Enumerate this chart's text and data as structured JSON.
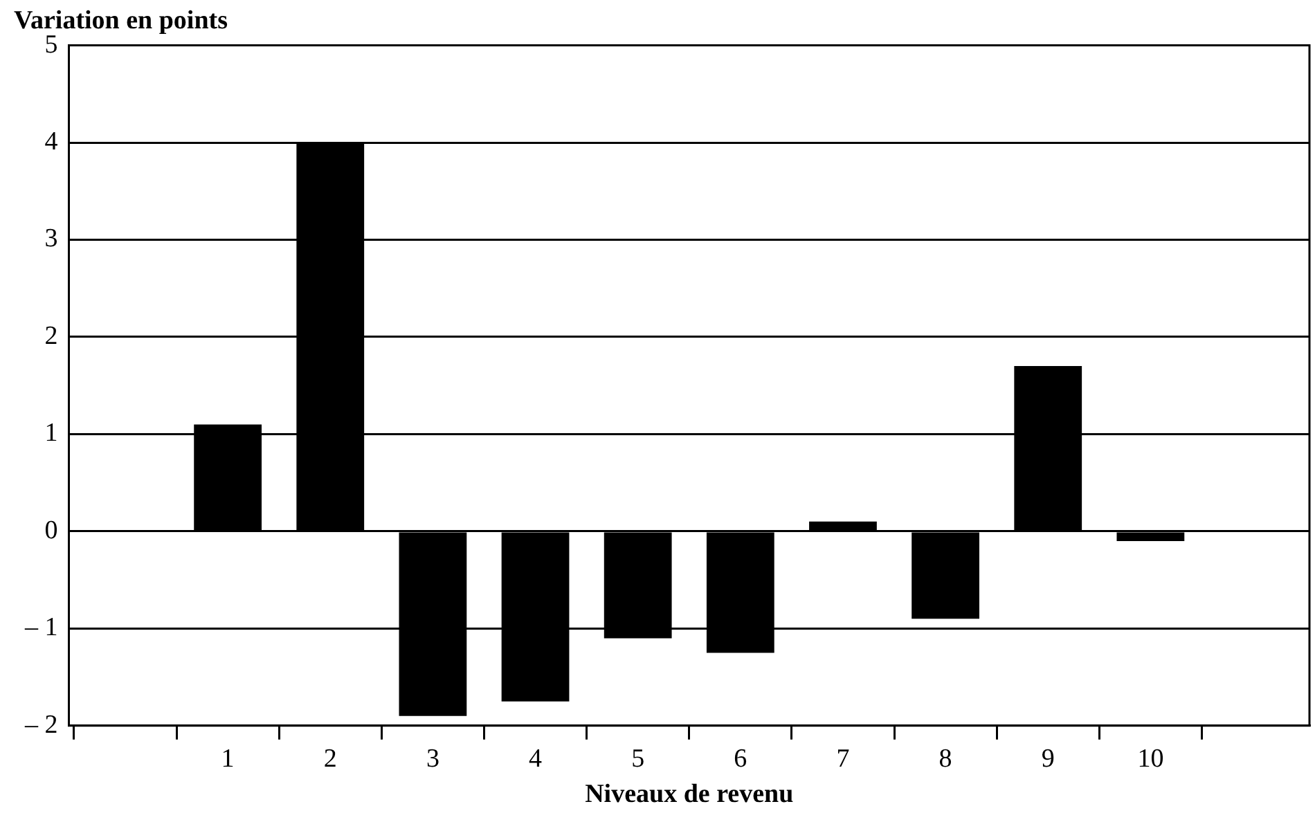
{
  "chart_data": {
    "type": "bar",
    "ylabel": "Variation en points",
    "xlabel": "Niveaux de revenu",
    "categories": [
      "1",
      "2",
      "3",
      "4",
      "5",
      "6",
      "7",
      "8",
      "9",
      "10"
    ],
    "values": [
      1.1,
      4.0,
      -1.9,
      -1.75,
      -1.1,
      -1.25,
      0.1,
      -0.9,
      1.7,
      -0.1
    ],
    "color": "#000000",
    "ylim": [
      -2,
      5
    ],
    "yticks": [
      {
        "value": -2,
        "label": "– 2"
      },
      {
        "value": -1,
        "label": "– 1"
      },
      0,
      1,
      2,
      3,
      4,
      5
    ],
    "grid": "y"
  }
}
